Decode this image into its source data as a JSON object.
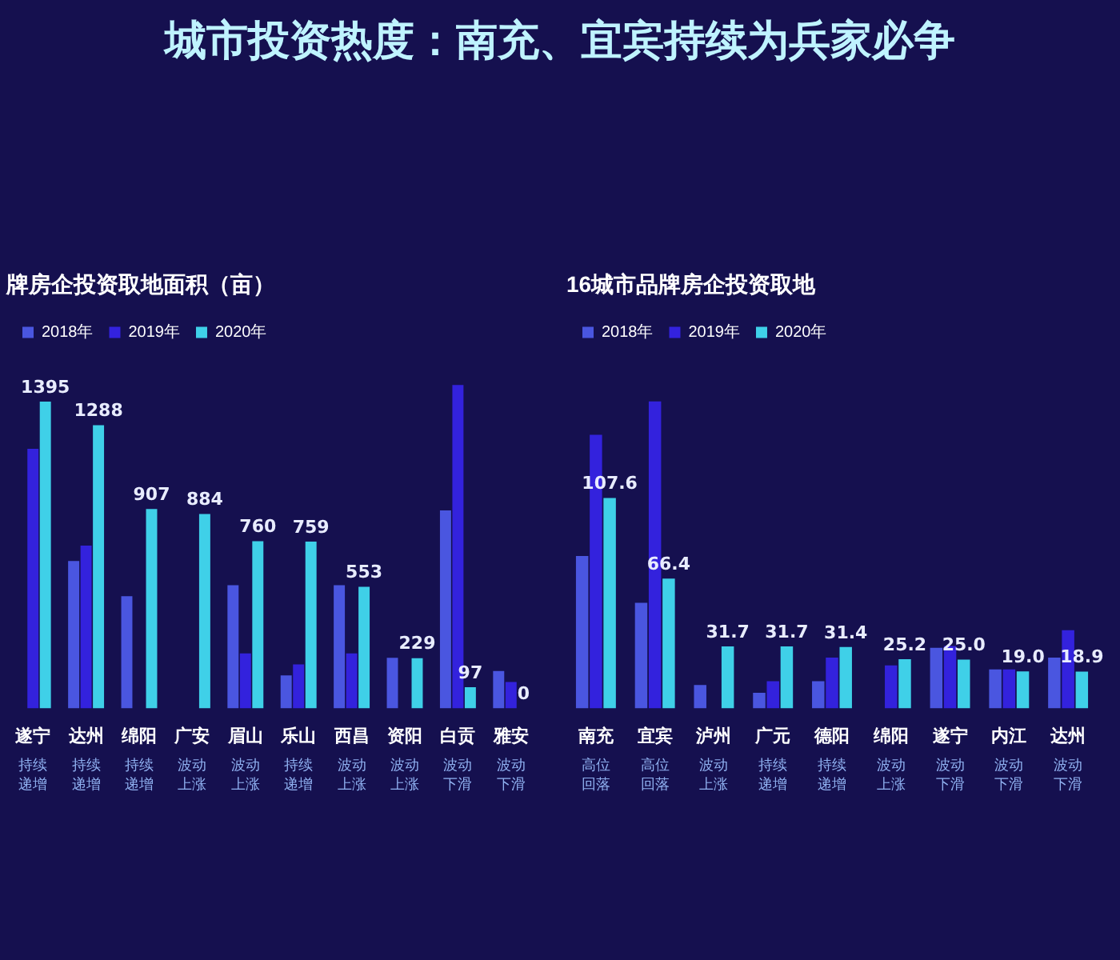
{
  "chart_data": [
    {
      "type": "bar",
      "title": "牌房企投资取地面积（亩）",
      "annotations": [
        "持续递增",
        "持续递增",
        "持续递增",
        "波动上涨",
        "波动上涨",
        "持续递增",
        "波动上涨",
        "波动上涨",
        "波动下滑",
        "波动下滑",
        "城市投资热度：南充、宜宾持续为兵家必争"
      ],
      "categories": [
        "遂宁",
        "达州",
        "绵阳",
        "广安",
        "眉山",
        "乐山",
        "西昌",
        "资阳",
        "白贡",
        "雅安"
      ],
      "series": [
        {
          "name": "2018年",
          "color": "#4a56e0",
          "values": [
            null,
            670,
            510,
            null,
            560,
            150,
            560,
            230,
            900,
            170
          ]
        },
        {
          "name": "2019年",
          "color": "#3322dd",
          "values": [
            1180,
            740,
            null,
            null,
            250,
            200,
            250,
            null,
            1470,
            120
          ]
        },
        {
          "name": "2020年",
          "color": "#3fd0e8",
          "values": [
            1395,
            1288,
            907,
            884,
            760,
            759,
            553,
            229,
            97,
            0
          ],
          "value_labels": [
            "1395",
            "1288",
            "907",
            "884",
            "760",
            "759",
            "553",
            "229",
            "97",
            "0"
          ]
        }
      ],
      "grid": false,
      "legend": "top"
    },
    {
      "type": "bar",
      "title": "16城市品牌房企投资取地",
      "annotations": [
        "高位回落",
        "高位回落",
        "波动上涨",
        "持续递增",
        "持续递增",
        "波动上涨",
        "波动下滑",
        "波动下滑",
        "波动下滑"
      ],
      "categories": [
        "南充",
        "宜宾",
        "泸州",
        "广元",
        "德阳",
        "绵阳",
        "遂宁",
        "内江",
        "达州"
      ],
      "series": [
        {
          "name": "2018年",
          "color": "#4a56e0",
          "values": [
            78,
            54,
            12,
            8,
            14,
            null,
            31,
            20,
            26
          ]
        },
        {
          "name": "2019年",
          "color": "#3322dd",
          "values": [
            140,
            157,
            null,
            14,
            26,
            22,
            32,
            20,
            40
          ]
        },
        {
          "name": "2020年",
          "color": "#3fd0e8",
          "values": [
            107.6,
            66.4,
            31.7,
            31.7,
            31.4,
            25.2,
            25.0,
            19.0,
            18.9
          ],
          "value_labels": [
            "107.6",
            "66.4",
            "31.7",
            "31.7",
            "31.4",
            "25.2",
            "25.0",
            "19.0",
            "18.9"
          ]
        }
      ],
      "grid": false,
      "legend": "top"
    }
  ]
}
